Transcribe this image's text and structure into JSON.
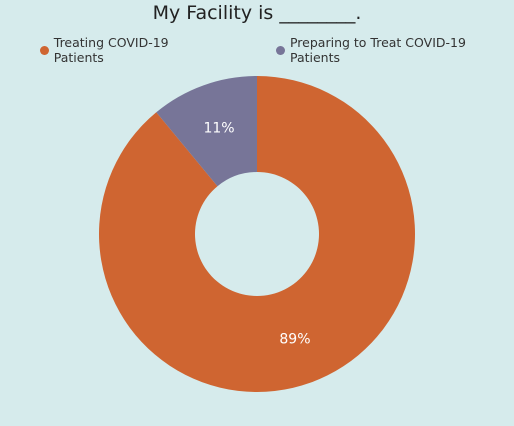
{
  "chart_data": {
    "type": "pie",
    "variant": "donut",
    "title": "My Facility is ________.",
    "legend_position": "top-left",
    "slices": [
      {
        "name": "Treating COVID-19 Patients",
        "value": 89,
        "label": "89%",
        "color": "#cf6531"
      },
      {
        "name": "Preparing to Treat COVID-19 Patients",
        "value": 11,
        "label": "11%",
        "color": "#777598"
      }
    ]
  },
  "colors": {
    "background": "#d6ebec"
  }
}
